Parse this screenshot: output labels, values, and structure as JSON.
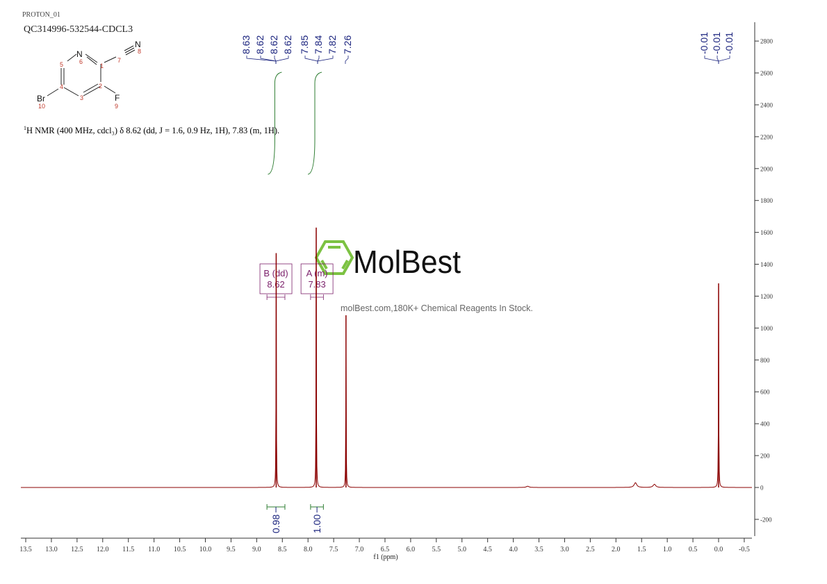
{
  "header": {
    "experiment": "PROTON_01",
    "sample": "QC314996-532544-CDCL3"
  },
  "structure": {
    "atoms": [
      "N",
      "N",
      "Br",
      "F"
    ],
    "atom_numbers": [
      "1",
      "2",
      "3",
      "4",
      "5",
      "6",
      "7",
      "8",
      "9",
      "10"
    ]
  },
  "nmr_text": {
    "sup": "1",
    "text": "H NMR (400 MHz, cdcl₃) δ 8.62 (dd, J = 1.6, 0.9 Hz, 1H), 7.83 (m, 1H)."
  },
  "watermark": {
    "brand": "MolBest",
    "tagline": "molBest.com,180K+ Chemical Reagents In Stock.",
    "color": "#7cc242"
  },
  "colors": {
    "spectrum": "#8b0000",
    "peak_labels": "#1a237e",
    "integral": "#2e7d32",
    "annotation": "#7b1f6a"
  },
  "chart_data": {
    "type": "line",
    "xlabel": "f1 (ppm)",
    "xlim": [
      13.5,
      -0.5
    ],
    "ylim": [
      -300,
      2900
    ],
    "x_ticks": [
      "13.5",
      "13.0",
      "12.5",
      "12.0",
      "11.5",
      "11.0",
      "10.5",
      "10.0",
      "9.5",
      "9.0",
      "8.5",
      "8.0",
      "7.5",
      "7.0",
      "6.5",
      "6.0",
      "5.5",
      "5.0",
      "4.5",
      "4.0",
      "3.5",
      "3.0",
      "2.5",
      "2.0",
      "1.5",
      "1.0",
      "0.5",
      "0.0",
      "-0.5"
    ],
    "y_ticks": [
      "-200",
      "0",
      "200",
      "400",
      "600",
      "800",
      "1000",
      "1200",
      "1400",
      "1600",
      "1800",
      "2000",
      "2200",
      "2400",
      "2600",
      "2800"
    ],
    "peaks": [
      {
        "ppm": 8.62,
        "intensity": 1470
      },
      {
        "ppm": 7.84,
        "intensity": 1630
      },
      {
        "ppm": 7.26,
        "intensity": 1080
      },
      {
        "ppm": 0.0,
        "intensity": 1280
      },
      {
        "ppm": 1.62,
        "intensity": 30
      },
      {
        "ppm": 1.25,
        "intensity": 20
      },
      {
        "ppm": 3.72,
        "intensity": 8
      }
    ],
    "peak_labels_group1": [
      "8.63",
      "8.62",
      "8.62",
      "8.62"
    ],
    "peak_labels_group2": [
      "7.85",
      "7.84",
      "7.82",
      "7.26"
    ],
    "peak_labels_group3": [
      "-0.01",
      "-0.01",
      "-0.01"
    ],
    "multiplets": [
      {
        "label": "B (dd)",
        "shift": "8.62",
        "range": [
          8.8,
          8.45
        ]
      },
      {
        "label": "A (m)",
        "shift": "7.83",
        "range": [
          7.95,
          7.7
        ]
      }
    ],
    "integrals": [
      {
        "value": "0.98",
        "range": [
          8.8,
          8.45
        ],
        "curve_ppm": 8.62
      },
      {
        "value": "1.00",
        "range": [
          7.95,
          7.7
        ],
        "curve_ppm": 7.84
      }
    ]
  }
}
